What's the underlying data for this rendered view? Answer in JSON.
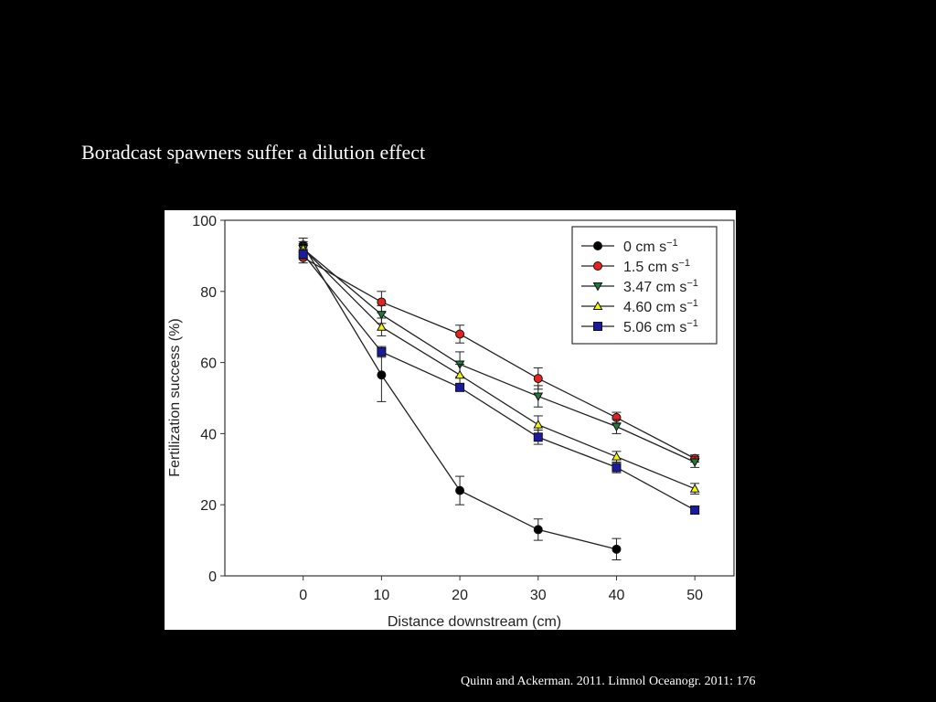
{
  "slide": {
    "title": "Boradcast spawners suffer a dilution effect",
    "citation": "Quinn and Ackerman. 2011. Limnol Oceanogr. 2011: 176"
  },
  "chart_data": {
    "type": "line",
    "xlabel": "Distance downstream (cm)",
    "ylabel": "Fertilization success (%)",
    "xlim": [
      -10,
      55
    ],
    "ylim": [
      0,
      100
    ],
    "xticks": [
      0,
      10,
      20,
      30,
      40,
      50
    ],
    "yticks": [
      0,
      20,
      40,
      60,
      80,
      100
    ],
    "legend_position": "top-right",
    "x": [
      0,
      10,
      20,
      30,
      40,
      50
    ],
    "series": [
      {
        "name": "0 cm s",
        "superscript": "−1",
        "marker": "circle",
        "color": "#000000",
        "values": [
          93,
          56.5,
          24,
          13,
          7.5,
          null
        ],
        "errors": [
          2,
          7.5,
          4,
          3,
          3,
          null
        ]
      },
      {
        "name": "1.5 cm s",
        "superscript": "−1",
        "marker": "circle",
        "color": "#e8231f",
        "values": [
          89.5,
          77,
          68,
          55.5,
          44.5,
          33
        ],
        "errors": [
          1.5,
          3,
          2.5,
          3,
          1.5,
          1
        ]
      },
      {
        "name": "3.47 cm s",
        "superscript": "−1",
        "marker": "triangle-down",
        "color": "#1d7a3a",
        "values": [
          92,
          73.5,
          59.5,
          50.5,
          42,
          32
        ],
        "errors": [
          1.5,
          2.5,
          3.5,
          3,
          2,
          1.5
        ]
      },
      {
        "name": "4.60 cm s",
        "superscript": "−1",
        "marker": "triangle-up",
        "color": "#f5f500",
        "values": [
          92,
          70,
          56.5,
          42.5,
          33.5,
          24.5
        ],
        "errors": [
          2,
          2.5,
          3,
          2.5,
          1.5,
          1.5
        ]
      },
      {
        "name": "5.06 cm s",
        "superscript": "−1",
        "marker": "square",
        "color": "#1a1aa0",
        "values": [
          90.5,
          63,
          53,
          39,
          30.5,
          18.5
        ],
        "errors": [
          1.5,
          1.5,
          1,
          2,
          1.5,
          1
        ]
      }
    ]
  }
}
